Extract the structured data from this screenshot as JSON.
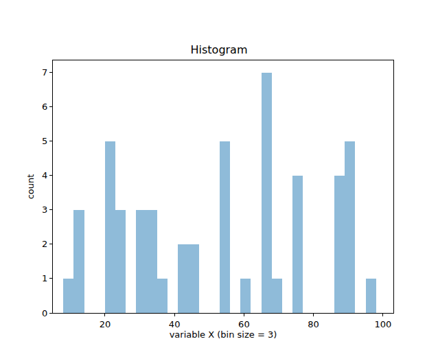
{
  "chart_data": {
    "type": "histogram",
    "title": "Histogram",
    "x_label": "variable X (bin size = 3)",
    "y_label": "count",
    "bins": [
      8,
      11,
      14,
      17,
      20,
      23,
      26,
      29,
      32,
      35,
      38,
      41,
      44,
      47,
      50,
      53,
      56,
      59,
      62,
      65,
      68,
      71,
      74,
      77,
      80,
      83,
      86,
      89,
      92,
      95,
      98
    ],
    "values": [
      1,
      3,
      0,
      0,
      5,
      3,
      0,
      3,
      3,
      1,
      0,
      2,
      2,
      0,
      0,
      5,
      0,
      1,
      0,
      7,
      1,
      0,
      4,
      0,
      0,
      0,
      4,
      5,
      0,
      1
    ],
    "color": "#8fbbd9",
    "xlim": [
      5,
      103
    ],
    "xticks": [
      20,
      40,
      60,
      80,
      100
    ],
    "ylim": [
      0,
      7.35
    ],
    "yticks": [
      0,
      1,
      2,
      3,
      4,
      5,
      6,
      7
    ],
    "grid": false
  }
}
